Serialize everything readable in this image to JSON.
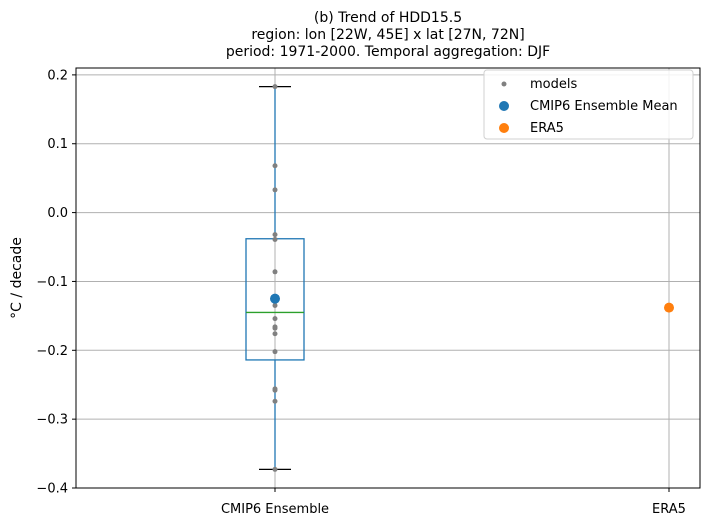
{
  "chart_data": {
    "type": "box",
    "title_lines": [
      "(b) Trend of HDD15.5",
      "region: lon [22W, 45E] x lat [27N, 72N]",
      "period: 1971-2000. Temporal aggregation: DJF"
    ],
    "ylabel": "°C / decade",
    "ylim": [
      -0.4,
      0.21
    ],
    "yticks": [
      -0.4,
      -0.3,
      -0.2,
      -0.1,
      0.0,
      0.1,
      0.2
    ],
    "ytick_labels": [
      "−0.4",
      "−0.3",
      "−0.2",
      "−0.1",
      "0.0",
      "0.1",
      "0.2"
    ],
    "categories": [
      "CMIP6 Ensemble",
      "ERA5"
    ],
    "grid": true,
    "legend_placement": "top-right",
    "box": {
      "category": "CMIP6 Ensemble",
      "whisker_low": -0.373,
      "q1": -0.214,
      "median": -0.145,
      "q3": -0.038,
      "whisker_high": 0.183
    },
    "models": [
      0.183,
      0.068,
      0.033,
      -0.032,
      -0.039,
      -0.086,
      -0.125,
      -0.135,
      -0.154,
      -0.166,
      -0.168,
      -0.176,
      -0.202,
      -0.256,
      -0.258,
      -0.274,
      -0.373
    ],
    "ensemble_mean": -0.125,
    "era5": -0.138,
    "legend": [
      {
        "label": "models",
        "color": "#808080"
      },
      {
        "label": "CMIP6 Ensemble Mean",
        "color": "#1f77b4"
      },
      {
        "label": "ERA5",
        "color": "#ff7f0e"
      }
    ],
    "colors": {
      "box": "#1f77b4",
      "median": "#2ca02c",
      "models": "#808080",
      "mean": "#1f77b4",
      "era5": "#ff7f0e",
      "grid": "#b0b0b0"
    }
  }
}
